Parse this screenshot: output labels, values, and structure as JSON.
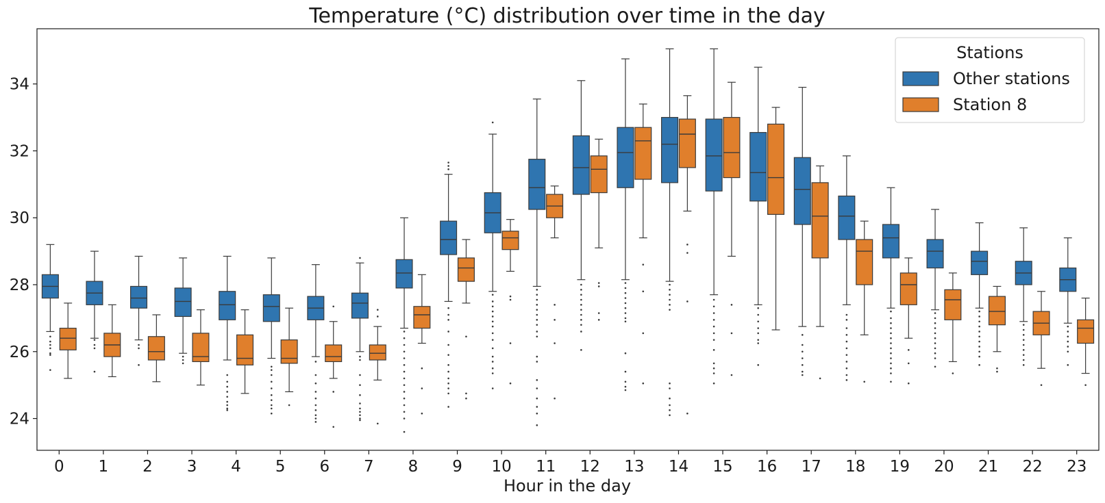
{
  "chart_data": {
    "type": "box",
    "title": "Temperature (°C) distribution over time in the day",
    "xlabel": "Hour in the day",
    "ylabel": "",
    "ylim": [
      23.05,
      35.65
    ],
    "yticks": [
      24,
      26,
      28,
      30,
      32,
      34
    ],
    "categories": [
      "0",
      "1",
      "2",
      "3",
      "4",
      "5",
      "6",
      "7",
      "8",
      "9",
      "10",
      "11",
      "12",
      "13",
      "14",
      "15",
      "16",
      "17",
      "18",
      "19",
      "20",
      "21",
      "22",
      "23"
    ],
    "legend": {
      "title": "Stations",
      "placement": "top-right"
    },
    "grid": false,
    "series": [
      {
        "name": "Other stations",
        "color": "#2f75b0",
        "boxes": [
          {
            "whislo": 26.6,
            "q1": 27.6,
            "med": 27.95,
            "q3": 28.3,
            "whishi": 29.2,
            "fliers": [
              26.45,
              26.3,
              26.2,
              26.1,
              25.95,
              25.9,
              25.45
            ]
          },
          {
            "whislo": 26.4,
            "q1": 27.4,
            "med": 27.75,
            "q3": 28.1,
            "whishi": 29.0,
            "fliers": [
              26.35,
              26.2,
              26.1,
              25.4
            ]
          },
          {
            "whislo": 26.35,
            "q1": 27.3,
            "med": 27.6,
            "q3": 27.95,
            "whishi": 28.85,
            "fliers": [
              26.2,
              26.1,
              25.6
            ]
          },
          {
            "whislo": 25.95,
            "q1": 27.05,
            "med": 27.5,
            "q3": 27.9,
            "whishi": 28.8,
            "fliers": [
              25.85,
              25.75,
              25.65
            ]
          },
          {
            "whislo": 25.75,
            "q1": 26.95,
            "med": 27.4,
            "q3": 27.8,
            "whishi": 28.85,
            "fliers": [
              25.3,
              25.1,
              24.95,
              24.8,
              24.65,
              24.5,
              24.4,
              24.3,
              24.25
            ]
          },
          {
            "whislo": 25.8,
            "q1": 26.9,
            "med": 27.35,
            "q3": 27.7,
            "whishi": 28.8,
            "fliers": [
              25.55,
              25.45,
              25.3,
              25.1,
              24.9,
              24.7,
              24.55,
              24.4,
              24.3,
              24.15
            ]
          },
          {
            "whislo": 25.85,
            "q1": 26.95,
            "med": 27.3,
            "q3": 27.65,
            "whishi": 28.6,
            "fliers": [
              25.7,
              25.3,
              25.05,
              24.8,
              24.6,
              24.4,
              24.25,
              24.1,
              24.0,
              23.9
            ]
          },
          {
            "whislo": 26.0,
            "q1": 27.0,
            "med": 27.45,
            "q3": 27.75,
            "whishi": 28.65,
            "fliers": [
              28.8,
              25.85,
              25.75,
              25.3,
              25.0,
              24.7,
              24.45,
              24.3,
              24.2,
              24.1,
              24.0,
              23.95
            ]
          },
          {
            "whislo": 26.7,
            "q1": 27.9,
            "med": 28.35,
            "q3": 28.75,
            "whishi": 30.0,
            "fliers": [
              26.6,
              26.4,
              26.2,
              26.0,
              25.8,
              25.6,
              25.4,
              25.2,
              25.0,
              24.8,
              24.6,
              24.4,
              24.2,
              24.0,
              23.6
            ]
          },
          {
            "whislo": 27.5,
            "q1": 28.9,
            "med": 29.35,
            "q3": 29.9,
            "whishi": 31.3,
            "fliers": [
              31.65,
              31.55,
              31.45,
              27.3,
              27.1,
              26.95,
              26.6,
              26.2,
              25.9,
              25.6,
              25.4,
              25.2,
              25.05,
              24.9,
              24.75,
              24.35
            ]
          },
          {
            "whislo": 27.8,
            "q1": 29.55,
            "med": 30.15,
            "q3": 30.75,
            "whishi": 32.5,
            "fliers": [
              32.85,
              27.7,
              27.5,
              27.35,
              27.2,
              27.05,
              26.9,
              26.75,
              26.55,
              26.35,
              26.1,
              25.85,
              25.7,
              25.5,
              25.35,
              24.9
            ]
          },
          {
            "whislo": 27.95,
            "q1": 30.25,
            "med": 30.9,
            "q3": 31.75,
            "whishi": 33.55,
            "fliers": [
              27.85,
              27.7,
              27.55,
              27.4,
              27.25,
              27.1,
              26.95,
              26.8,
              26.6,
              26.45,
              25.85,
              25.7,
              25.15,
              24.9,
              24.6,
              24.35,
              24.15,
              23.8
            ]
          },
          {
            "whislo": 28.15,
            "q1": 30.7,
            "med": 31.5,
            "q3": 32.45,
            "whishi": 34.1,
            "fliers": [
              28.0,
              27.85,
              27.7,
              27.55,
              27.4,
              27.25,
              27.1,
              26.95,
              26.8,
              26.6,
              26.05
            ]
          },
          {
            "whislo": 28.15,
            "q1": 30.9,
            "med": 31.95,
            "q3": 32.7,
            "whishi": 34.75,
            "fliers": [
              28.05,
              27.9,
              27.75,
              27.6,
              27.45,
              27.3,
              27.15,
              27.0,
              26.9,
              25.95,
              25.4,
              25.1,
              24.95,
              24.85
            ]
          },
          {
            "whislo": 28.1,
            "q1": 31.05,
            "med": 32.2,
            "q3": 33.0,
            "whishi": 35.05,
            "fliers": [
              28.0,
              27.85,
              27.7,
              27.55,
              27.4,
              27.25,
              25.05,
              24.9,
              24.6,
              24.4,
              24.25,
              24.1
            ]
          },
          {
            "whislo": 27.7,
            "q1": 30.8,
            "med": 31.85,
            "q3": 32.95,
            "whishi": 35.05,
            "fliers": [
              27.55,
              27.35,
              27.15,
              26.95,
              26.75,
              26.55,
              26.35,
              26.05,
              25.65,
              25.5,
              25.35,
              25.05
            ]
          },
          {
            "whislo": 27.4,
            "q1": 30.5,
            "med": 31.35,
            "q3": 32.55,
            "whishi": 34.5,
            "fliers": [
              27.3,
              27.1,
              26.9,
              26.7,
              26.55,
              26.35,
              26.25,
              25.6
            ]
          },
          {
            "whislo": 26.75,
            "q1": 29.8,
            "med": 30.85,
            "q3": 31.8,
            "whishi": 33.9,
            "fliers": [
              26.5,
              26.2,
              26.0,
              25.8,
              25.6,
              25.4,
              25.3
            ]
          },
          {
            "whislo": 27.4,
            "q1": 29.35,
            "med": 30.05,
            "q3": 30.65,
            "whishi": 31.85,
            "fliers": [
              27.1,
              26.95,
              26.7,
              26.5,
              26.3,
              26.1,
              25.9,
              25.7,
              25.5,
              25.3,
              25.15
            ]
          },
          {
            "whislo": 27.3,
            "q1": 28.8,
            "med": 29.4,
            "q3": 29.8,
            "whishi": 30.9,
            "fliers": [
              27.2,
              27.0,
              26.85,
              26.7,
              26.55,
              26.4,
              26.25,
              26.1,
              25.95,
              25.8,
              25.65,
              25.5,
              25.35,
              25.1
            ]
          },
          {
            "whislo": 27.25,
            "q1": 28.5,
            "med": 29.0,
            "q3": 29.35,
            "whishi": 30.25,
            "fliers": [
              27.15,
              27.0,
              26.85,
              26.7,
              26.55,
              26.4,
              26.25,
              26.1,
              25.95,
              25.8,
              25.55
            ]
          },
          {
            "whislo": 27.3,
            "q1": 28.3,
            "med": 28.7,
            "q3": 29.0,
            "whishi": 29.85,
            "fliers": [
              27.2,
              27.05,
              26.9,
              26.75,
              26.6,
              26.45,
              26.3,
              26.15,
              26.0,
              25.85,
              25.6
            ]
          },
          {
            "whislo": 26.9,
            "q1": 28.0,
            "med": 28.35,
            "q3": 28.7,
            "whishi": 29.7,
            "fliers": [
              26.8,
              26.65,
              26.5,
              26.35,
              26.2,
              26.05,
              25.9,
              25.75,
              25.6
            ]
          },
          {
            "whislo": 26.85,
            "q1": 27.8,
            "med": 28.15,
            "q3": 28.5,
            "whishi": 29.4,
            "fliers": [
              26.75,
              26.6,
              26.45,
              26.3,
              26.15,
              26.0,
              25.6
            ]
          }
        ]
      },
      {
        "name": "Station 8",
        "color": "#e07f2c",
        "boxes": [
          {
            "whislo": 25.2,
            "q1": 26.05,
            "med": 26.4,
            "q3": 26.7,
            "whishi": 27.45,
            "fliers": []
          },
          {
            "whislo": 25.25,
            "q1": 25.85,
            "med": 26.2,
            "q3": 26.55,
            "whishi": 27.4,
            "fliers": []
          },
          {
            "whislo": 25.1,
            "q1": 25.75,
            "med": 26.0,
            "q3": 26.45,
            "whishi": 27.1,
            "fliers": []
          },
          {
            "whislo": 25.0,
            "q1": 25.7,
            "med": 25.85,
            "q3": 26.55,
            "whishi": 27.25,
            "fliers": []
          },
          {
            "whislo": 24.75,
            "q1": 25.6,
            "med": 25.8,
            "q3": 26.5,
            "whishi": 27.25,
            "fliers": []
          },
          {
            "whislo": 24.8,
            "q1": 25.65,
            "med": 25.8,
            "q3": 26.35,
            "whishi": 27.3,
            "fliers": [
              24.4
            ]
          },
          {
            "whislo": 25.2,
            "q1": 25.7,
            "med": 25.85,
            "q3": 26.2,
            "whishi": 26.9,
            "fliers": [
              27.35,
              24.8,
              23.75
            ]
          },
          {
            "whislo": 25.15,
            "q1": 25.75,
            "med": 25.95,
            "q3": 26.2,
            "whishi": 26.75,
            "fliers": [
              27.25,
              27.05,
              23.85
            ]
          },
          {
            "whislo": 26.25,
            "q1": 26.7,
            "med": 27.1,
            "q3": 27.35,
            "whishi": 28.3,
            "fliers": [
              25.5,
              24.9,
              24.15
            ]
          },
          {
            "whislo": 27.45,
            "q1": 28.1,
            "med": 28.5,
            "q3": 28.8,
            "whishi": 29.35,
            "fliers": [
              26.45,
              24.75,
              24.6
            ]
          },
          {
            "whislo": 28.4,
            "q1": 29.05,
            "med": 29.4,
            "q3": 29.6,
            "whishi": 29.95,
            "fliers": [
              27.65,
              27.55,
              26.25,
              25.05
            ]
          },
          {
            "whislo": 29.4,
            "q1": 30.0,
            "med": 30.35,
            "q3": 30.7,
            "whishi": 30.95,
            "fliers": [
              27.4,
              26.95,
              26.25,
              24.6
            ]
          },
          {
            "whislo": 29.1,
            "q1": 30.75,
            "med": 31.45,
            "q3": 31.85,
            "whishi": 32.35,
            "fliers": [
              28.05,
              27.95,
              27.15,
              26.95
            ]
          },
          {
            "whislo": 29.4,
            "q1": 31.15,
            "med": 32.3,
            "q3": 32.7,
            "whishi": 33.4,
            "fliers": [
              28.6,
              27.8,
              26.55,
              25.05
            ]
          },
          {
            "whislo": 30.2,
            "q1": 31.5,
            "med": 32.5,
            "q3": 32.95,
            "whishi": 33.65,
            "fliers": [
              29.2,
              28.95,
              27.5,
              24.15
            ]
          },
          {
            "whislo": 28.85,
            "q1": 31.2,
            "med": 31.95,
            "q3": 33.0,
            "whishi": 34.05,
            "fliers": [
              27.4,
              26.55,
              25.3
            ]
          },
          {
            "whislo": 26.65,
            "q1": 30.1,
            "med": 31.2,
            "q3": 32.8,
            "whishi": 33.3,
            "fliers": []
          },
          {
            "whislo": 26.75,
            "q1": 28.8,
            "med": 30.05,
            "q3": 31.05,
            "whishi": 31.55,
            "fliers": [
              25.2
            ]
          },
          {
            "whislo": 26.5,
            "q1": 28.0,
            "med": 29.0,
            "q3": 29.35,
            "whishi": 29.9,
            "fliers": [
              25.1
            ]
          },
          {
            "whislo": 26.4,
            "q1": 27.4,
            "med": 28.0,
            "q3": 28.35,
            "whishi": 28.8,
            "fliers": [
              26.05,
              25.65,
              25.05
            ]
          },
          {
            "whislo": 25.7,
            "q1": 26.95,
            "med": 27.55,
            "q3": 27.85,
            "whishi": 28.35,
            "fliers": [
              25.35
            ]
          },
          {
            "whislo": 26.0,
            "q1": 26.8,
            "med": 27.2,
            "q3": 27.65,
            "whishi": 27.95,
            "fliers": [
              25.5,
              25.4
            ]
          },
          {
            "whislo": 25.5,
            "q1": 26.5,
            "med": 26.85,
            "q3": 27.2,
            "whishi": 27.8,
            "fliers": [
              25.0
            ]
          },
          {
            "whislo": 25.35,
            "q1": 26.25,
            "med": 26.7,
            "q3": 26.95,
            "whishi": 27.6,
            "fliers": [
              25.0
            ]
          }
        ]
      }
    ]
  }
}
